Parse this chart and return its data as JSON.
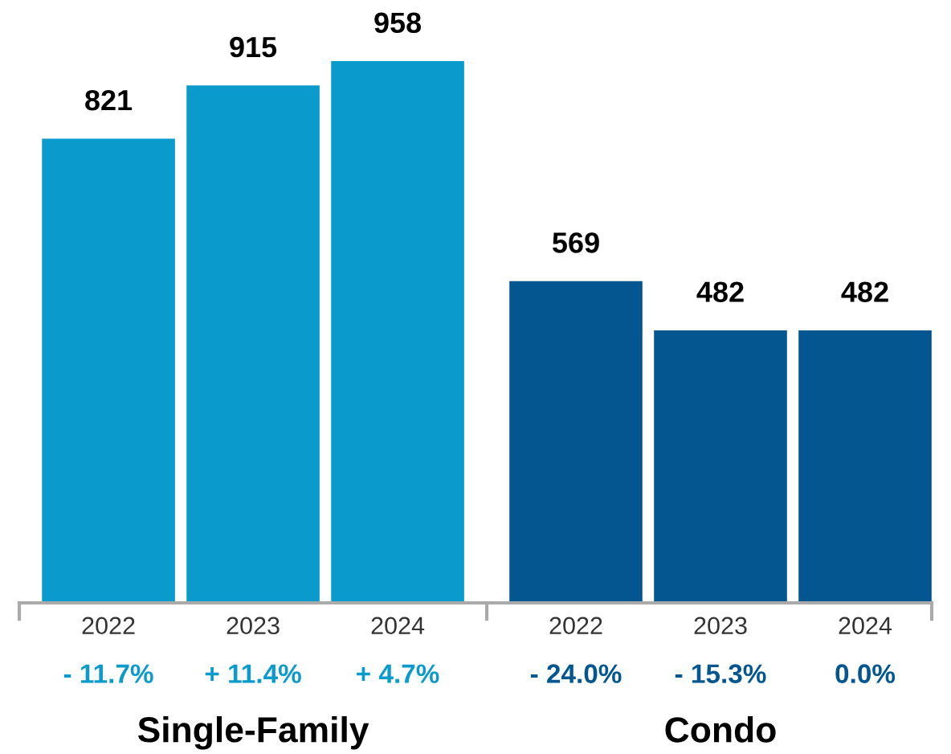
{
  "chart_data": {
    "type": "bar",
    "categories": [
      "2022",
      "2023",
      "2024",
      "2022",
      "2023",
      "2024"
    ],
    "series": [
      {
        "color": "#0a9acb",
        "values": [
          821,
          915,
          958,
          null,
          null,
          null
        ]
      },
      {
        "color": "#03568f",
        "values": [
          null,
          null,
          null,
          569,
          482,
          482
        ]
      }
    ],
    "data_labels": true,
    "grid": false,
    "legend": false,
    "annotations": [
      "- 11.7%",
      "+ 11.4%",
      "+ 4.7%",
      "- 24.0%",
      "- 15.3%",
      "0.0%",
      "Single-Family",
      "Condo"
    ]
  }
}
